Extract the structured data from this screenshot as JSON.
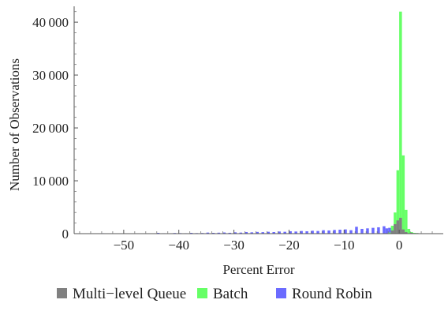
{
  "chart_data": {
    "type": "bar",
    "xlabel": "Percent Error",
    "ylabel": "Number of Observations",
    "xlim": [
      -59,
      8
    ],
    "ylim": [
      0,
      43000
    ],
    "x_ticks": [
      -50,
      -40,
      -30,
      -20,
      -10,
      0
    ],
    "x_tick_labels": [
      "−50",
      "−40",
      "−30",
      "−20",
      "−10",
      "0"
    ],
    "y_ticks": [
      0,
      10000,
      20000,
      30000,
      40000
    ],
    "y_tick_labels": [
      "0",
      "10 000",
      "20 000",
      "30 000",
      "40 000"
    ],
    "bin_width": 0.5,
    "legend_position": "bottom",
    "grid": false,
    "series": [
      {
        "name": "Multi−level Queue",
        "color": "#808080",
        "bins": [
          {
            "x": -1.5,
            "y": 600
          },
          {
            "x": -1.0,
            "y": 1800
          },
          {
            "x": -0.5,
            "y": 2500
          },
          {
            "x": 0.0,
            "y": 3000
          },
          {
            "x": 0.5,
            "y": 800
          },
          {
            "x": 1.0,
            "y": 300
          },
          {
            "x": 2.0,
            "y": 150
          },
          {
            "x": 3.0,
            "y": 100
          }
        ]
      },
      {
        "name": "Batch",
        "color": "#66ff66",
        "bins": [
          {
            "x": -2.0,
            "y": 200
          },
          {
            "x": -1.5,
            "y": 1500
          },
          {
            "x": -1.0,
            "y": 4000
          },
          {
            "x": -0.5,
            "y": 12000
          },
          {
            "x": 0.0,
            "y": 42000
          },
          {
            "x": 0.5,
            "y": 14800
          },
          {
            "x": 1.0,
            "y": 4500
          },
          {
            "x": 1.5,
            "y": 900
          },
          {
            "x": 2.0,
            "y": 300
          },
          {
            "x": 2.5,
            "y": 150
          },
          {
            "x": 3.0,
            "y": 100
          }
        ]
      },
      {
        "name": "Round Robin",
        "color": "#6b6bff",
        "bins": [
          {
            "x": -58.0,
            "y": 60
          },
          {
            "x": -56.0,
            "y": 40
          },
          {
            "x": -54.0,
            "y": 80
          },
          {
            "x": -51.0,
            "y": 60
          },
          {
            "x": -49.0,
            "y": 50
          },
          {
            "x": -47.0,
            "y": 40
          },
          {
            "x": -44.0,
            "y": 150
          },
          {
            "x": -43.0,
            "y": 80
          },
          {
            "x": -42.0,
            "y": 60
          },
          {
            "x": -41.0,
            "y": 120
          },
          {
            "x": -40.0,
            "y": 100
          },
          {
            "x": -39.0,
            "y": 80
          },
          {
            "x": -38.0,
            "y": 150
          },
          {
            "x": -37.0,
            "y": 100
          },
          {
            "x": -36.0,
            "y": 120
          },
          {
            "x": -35.0,
            "y": 200
          },
          {
            "x": -34.0,
            "y": 150
          },
          {
            "x": -33.0,
            "y": 180
          },
          {
            "x": -32.0,
            "y": 220
          },
          {
            "x": -31.0,
            "y": 160
          },
          {
            "x": -30.0,
            "y": 250
          },
          {
            "x": -29.0,
            "y": 200
          },
          {
            "x": -28.0,
            "y": 300
          },
          {
            "x": -27.0,
            "y": 250
          },
          {
            "x": -26.0,
            "y": 320
          },
          {
            "x": -25.0,
            "y": 280
          },
          {
            "x": -24.0,
            "y": 350
          },
          {
            "x": -23.0,
            "y": 300
          },
          {
            "x": -22.0,
            "y": 400
          },
          {
            "x": -21.0,
            "y": 350
          },
          {
            "x": -20.0,
            "y": 450
          },
          {
            "x": -19.0,
            "y": 400
          },
          {
            "x": -18.0,
            "y": 500
          },
          {
            "x": -17.0,
            "y": 450
          },
          {
            "x": -16.0,
            "y": 550
          },
          {
            "x": -15.0,
            "y": 500
          },
          {
            "x": -14.0,
            "y": 650
          },
          {
            "x": -13.0,
            "y": 600
          },
          {
            "x": -12.0,
            "y": 700
          },
          {
            "x": -11.0,
            "y": 750
          },
          {
            "x": -10.0,
            "y": 800
          },
          {
            "x": -9.0,
            "y": 650
          },
          {
            "x": -8.0,
            "y": 1300
          },
          {
            "x": -7.0,
            "y": 900
          },
          {
            "x": -6.0,
            "y": 1000
          },
          {
            "x": -5.0,
            "y": 1100
          },
          {
            "x": -4.0,
            "y": 1200
          },
          {
            "x": -3.0,
            "y": 1400
          },
          {
            "x": -2.5,
            "y": 1000
          },
          {
            "x": -2.0,
            "y": 1100
          },
          {
            "x": -1.5,
            "y": 800
          },
          {
            "x": -1.0,
            "y": 500
          }
        ]
      }
    ]
  }
}
